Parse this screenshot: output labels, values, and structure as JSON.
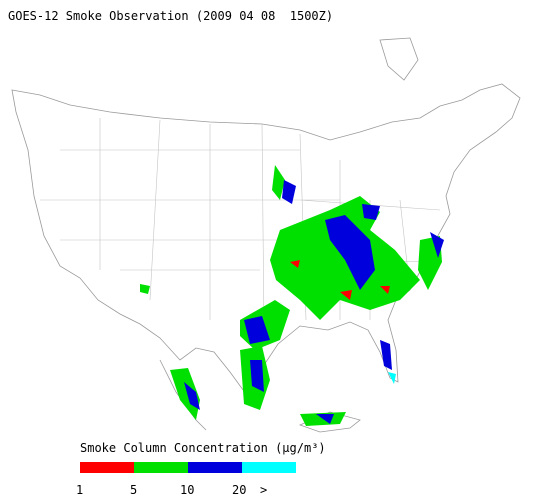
{
  "title": "GOES-12 Smoke Observation (2009 04 08  1500Z)",
  "colorbar": {
    "label": "Smoke Column Concentration (μg/m³)",
    "ticks": [
      "1",
      "5",
      "10",
      "20",
      ">"
    ],
    "colors": [
      "#ff0000",
      "#00e000",
      "#0000dd",
      "#00ffff"
    ]
  }
}
